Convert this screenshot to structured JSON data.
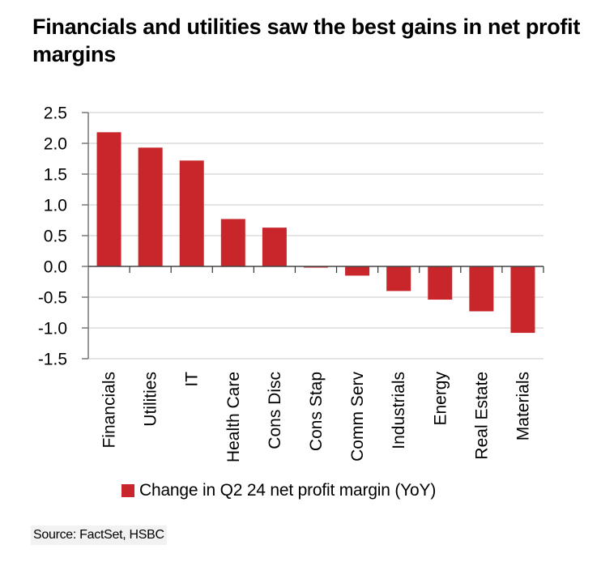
{
  "chart_data": {
    "type": "bar",
    "title": "Financials and utilities saw the best gains in net profit margins",
    "categories": [
      "Financials",
      "Utilities",
      "IT",
      "Health Care",
      "Cons Disc",
      "Cons Stap",
      "Comm Serv",
      "Industrials",
      "Energy",
      "Real Estate",
      "Materials"
    ],
    "series": [
      {
        "name": "Change in Q2 24 net profit margin (YoY)",
        "color": "#c8262a",
        "values": [
          2.18,
          1.93,
          1.72,
          0.77,
          0.63,
          -0.02,
          -0.15,
          -0.4,
          -0.54,
          -0.73,
          -1.08
        ]
      }
    ],
    "xlabel": "",
    "ylabel": "",
    "ylim": [
      -1.5,
      2.5
    ],
    "yticks": [
      2.5,
      2.0,
      1.5,
      1.0,
      0.5,
      0.0,
      -0.5,
      -1.0,
      -1.5
    ],
    "ytick_labels": [
      "2.5",
      "2.0",
      "1.5",
      "1.0",
      "0.5",
      "0.0",
      "-0.5",
      "-1.0",
      "-1.5"
    ],
    "grid": true,
    "legend_position": "bottom"
  },
  "header": {
    "title": "Financials and utilities saw the best gains in net profit margins"
  },
  "legend": {
    "label": "Change in Q2 24 net profit margin (YoY)"
  },
  "footer": {
    "source": "Source: FactSet, HSBC"
  }
}
